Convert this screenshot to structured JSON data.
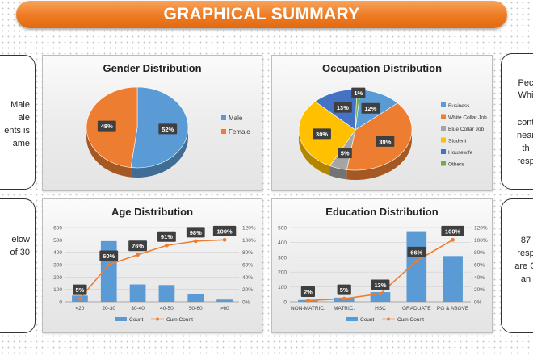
{
  "banner": {
    "title": "GRAPHICAL SUMMARY"
  },
  "notes": {
    "left_top": [
      "Male",
      "ale",
      "ents is",
      "ame"
    ],
    "left_bottom": [
      "elow",
      "of 30"
    ],
    "right_top": [
      "Pec",
      "Whi",
      "cont",
      "near",
      "th",
      "resp"
    ],
    "right_bottom": [
      "87",
      "resp",
      "are G",
      "an"
    ]
  },
  "colors": {
    "blue": "#5b9bd5",
    "orange": "#ed7d31",
    "gray": "#a5a5a5",
    "yellow": "#ffc000",
    "darkblue": "#4472c4",
    "green": "#70ad47",
    "banner": "#ee7a22"
  },
  "chart_data": [
    {
      "type": "pie",
      "title": "Gender Distribution",
      "labels": [
        "Male",
        "Female"
      ],
      "values": [
        52,
        48
      ],
      "data_labels": [
        "52%",
        "48%"
      ],
      "legend": "right"
    },
    {
      "type": "pie",
      "title": "Occupation Distribution",
      "labels": [
        "Business",
        "White Collar Job",
        "Blue Collar Job",
        "Student",
        "Housewife",
        "Others"
      ],
      "values": [
        12,
        39,
        5,
        30,
        13,
        1
      ],
      "data_labels": [
        "12%",
        "39%",
        "5%",
        "30%",
        "13%",
        "1%"
      ],
      "legend": "right"
    },
    {
      "type": "bar",
      "title": "Age Distribution",
      "categories": [
        "<20",
        "20-30",
        "30-40",
        "40-50",
        "50-60",
        ">60"
      ],
      "series": [
        {
          "name": "Count",
          "values": [
            50,
            490,
            140,
            135,
            60,
            18
          ]
        },
        {
          "name": "Cum Count",
          "values": [
            5,
            60,
            76,
            91,
            98,
            100
          ]
        }
      ],
      "data_labels": [
        "5%",
        "60%",
        "76%",
        "91%",
        "98%",
        "100%"
      ],
      "ylim": [
        0,
        600
      ],
      "y_ticks": [
        "0",
        "100",
        "200",
        "300",
        "400",
        "500",
        "600"
      ],
      "y2lim": [
        0,
        120
      ],
      "y2_ticks": [
        "0%",
        "20%",
        "40%",
        "60%",
        "80%",
        "100%",
        "120%"
      ],
      "grid": true,
      "legend": "bottom"
    },
    {
      "type": "bar",
      "title": "Education Distribution",
      "categories": [
        "NON-MATRIC.",
        "MATRIC.",
        "HSC",
        "GRADUATE",
        "PG & ABOVE"
      ],
      "series": [
        {
          "name": "Count",
          "values": [
            12,
            28,
            65,
            475,
            308
          ]
        },
        {
          "name": "Cum Count",
          "values": [
            2,
            5,
            13,
            66,
            100
          ]
        }
      ],
      "data_labels": [
        "2%",
        "5%",
        "13%",
        "66%",
        "100%"
      ],
      "ylim": [
        0,
        500
      ],
      "y_ticks": [
        "0",
        "100",
        "200",
        "300",
        "400",
        "500"
      ],
      "y2lim": [
        0,
        120
      ],
      "y2_ticks": [
        "0%",
        "20%",
        "40%",
        "60%",
        "80%",
        "100%",
        "120%"
      ],
      "grid": true,
      "legend": "bottom"
    }
  ]
}
